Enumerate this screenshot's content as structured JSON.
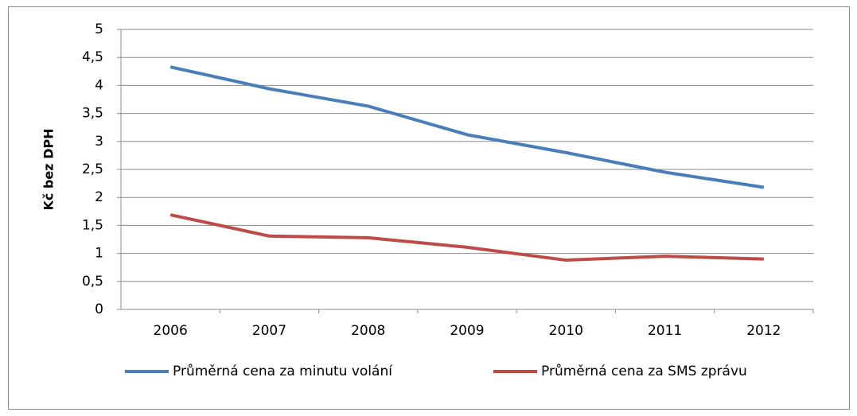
{
  "chart_data": {
    "type": "line",
    "ylabel": "Kč bez DPH",
    "categories": [
      "2006",
      "2007",
      "2008",
      "2009",
      "2010",
      "2011",
      "2012"
    ],
    "series": [
      {
        "name": "Průměrná cena za minutu volání",
        "color": "#4a7ebb",
        "values": [
          4.33,
          3.94,
          3.63,
          3.12,
          2.8,
          2.45,
          2.18
        ]
      },
      {
        "name": "Průměrná cena za SMS zprávu",
        "color": "#be4b48",
        "values": [
          1.69,
          1.31,
          1.28,
          1.11,
          0.88,
          0.95,
          0.9
        ]
      }
    ],
    "ylim": [
      0,
      5
    ],
    "yticks": [
      0,
      {
        "value": 0.5,
        "label": "0,5"
      },
      1,
      {
        "value": 1.5,
        "label": "1,5"
      },
      2,
      {
        "value": 2.5,
        "label": "2,5"
      },
      3,
      {
        "value": 3.5,
        "label": "3,5"
      },
      4,
      {
        "value": 4.5,
        "label": "4,5"
      },
      5
    ],
    "grid": true,
    "legend": "bottom"
  }
}
